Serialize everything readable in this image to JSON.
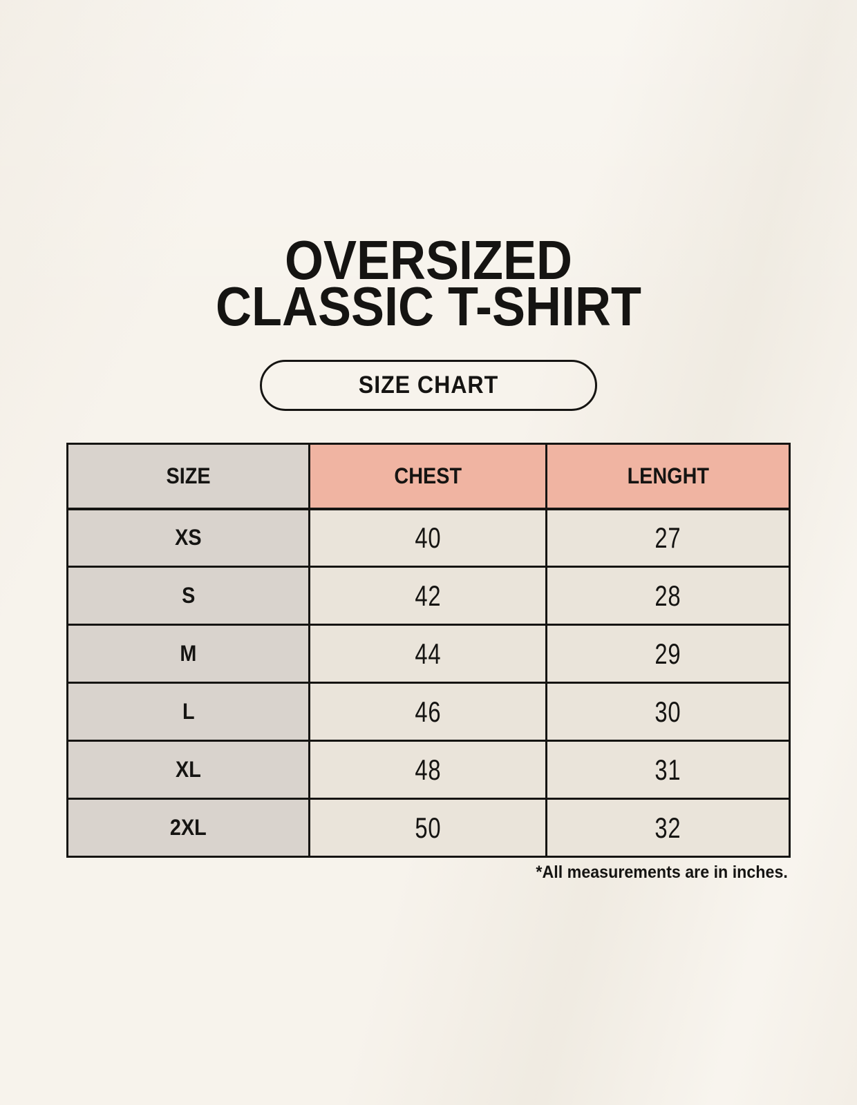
{
  "header": {
    "title_line1": "OVERSIZED",
    "title_line2": "CLASSIC T-SHIRT",
    "badge_label": "SIZE CHART"
  },
  "table": {
    "columns": [
      "SIZE",
      "CHEST",
      "LENGHT"
    ],
    "rows": [
      {
        "size": "XS",
        "chest": "40",
        "length": "27"
      },
      {
        "size": "S",
        "chest": "42",
        "length": "28"
      },
      {
        "size": "M",
        "chest": "44",
        "length": "29"
      },
      {
        "size": "L",
        "chest": "46",
        "length": "30"
      },
      {
        "size": "XL",
        "chest": "48",
        "length": "31"
      },
      {
        "size": "2XL",
        "chest": "50",
        "length": "32"
      }
    ],
    "footnote": "*All measurements are in inches."
  },
  "colors": {
    "background": "#f7f3ec",
    "header_size_bg": "#d9d3cd",
    "header_measure_bg": "#f0b4a2",
    "row_label_bg": "#d9d3cd",
    "row_value_bg": "#eae4da",
    "border": "#151412",
    "text": "#151412"
  },
  "chart_data": {
    "type": "table",
    "title": "OVERSIZED CLASSIC T-SHIRT",
    "columns": [
      "SIZE",
      "CHEST",
      "LENGHT"
    ],
    "units": "inches",
    "categories": [
      "XS",
      "S",
      "M",
      "L",
      "XL",
      "2XL"
    ],
    "series": [
      {
        "name": "CHEST",
        "values": [
          40,
          42,
          44,
          46,
          48,
          50
        ]
      },
      {
        "name": "LENGHT",
        "values": [
          27,
          28,
          29,
          30,
          31,
          32
        ]
      }
    ],
    "note": "*All measurements are in inches."
  }
}
